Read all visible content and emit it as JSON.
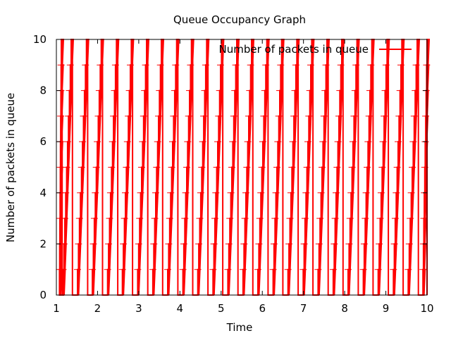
{
  "chart_data": {
    "type": "line",
    "title": "Queue Occupancy Graph",
    "xlabel": "Time",
    "ylabel": "Number of packets in queue",
    "xlim": [
      1,
      10
    ],
    "ylim": [
      0,
      10
    ],
    "x_ticks": [
      1,
      2,
      3,
      4,
      5,
      6,
      7,
      8,
      9,
      10
    ],
    "y_ticks": [
      0,
      2,
      4,
      6,
      8,
      10
    ],
    "grid": false,
    "legend_position": "top-right",
    "series": [
      {
        "name": "Number of packets in queue",
        "color": "#ff0000",
        "description_of_pattern": "sawtooth",
        "cycle_start_times": [
          1.07,
          1.14,
          1.49,
          1.85,
          2.22,
          2.58,
          2.95,
          3.32,
          3.68,
          4.05,
          4.41,
          4.78,
          5.14,
          5.51,
          5.87,
          6.24,
          6.6,
          6.97,
          7.33,
          7.7,
          8.06,
          8.43,
          8.79,
          9.16,
          9.52,
          9.89
        ],
        "cycle_peak_times": [
          1.12,
          1.36,
          1.73,
          2.09,
          2.46,
          2.82,
          3.19,
          3.55,
          3.92,
          4.28,
          4.65,
          5.01,
          5.38,
          5.74,
          6.11,
          6.47,
          6.84,
          7.2,
          7.57,
          7.93,
          8.3,
          8.66,
          9.03,
          9.39,
          9.76,
          10.0
        ],
        "min_value": 0,
        "max_value": 10
      }
    ]
  }
}
